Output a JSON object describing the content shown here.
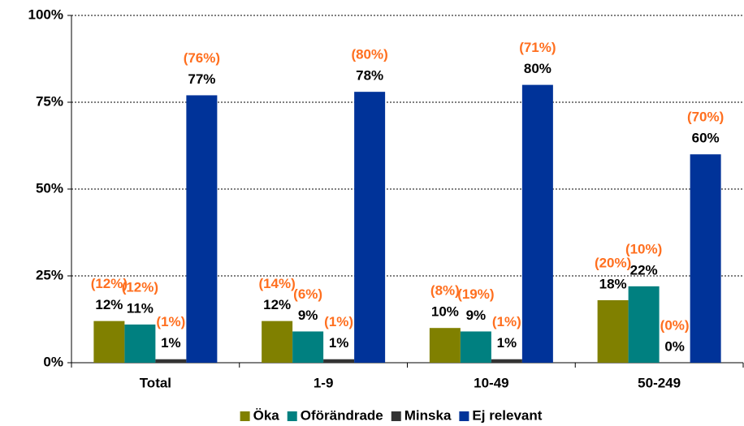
{
  "chart_data": {
    "type": "bar",
    "categories": [
      "Total",
      "1-9",
      "10-49",
      "50-249"
    ],
    "series": [
      {
        "name": "Öka",
        "color": "#808000",
        "values": [
          12,
          12,
          10,
          18
        ],
        "value_labels": [
          "12%",
          "12%",
          "10%",
          "18%"
        ],
        "prior_labels": [
          "(12%)",
          "(14%)",
          "(8%)",
          "(20%)"
        ]
      },
      {
        "name": "Oförändrade",
        "color": "#008080",
        "values": [
          11,
          9,
          9,
          22
        ],
        "value_labels": [
          "11%",
          "9%",
          "9%",
          "22%"
        ],
        "prior_labels": [
          "(12%)",
          "(6%)",
          "(19%)",
          "(10%)"
        ]
      },
      {
        "name": "Minska",
        "color": "#333333",
        "values": [
          1,
          1,
          1,
          0
        ],
        "value_labels": [
          "1%",
          "1%",
          "1%",
          "0%"
        ],
        "prior_labels": [
          "(1%)",
          "(1%)",
          "(1%)",
          "(0%)"
        ]
      },
      {
        "name": "Ej relevant",
        "color": "#003399",
        "values": [
          77,
          78,
          80,
          60
        ],
        "value_labels": [
          "77%",
          "78%",
          "80%",
          "60%"
        ],
        "prior_labels": [
          "(76%)",
          "(80%)",
          "(71%)",
          "(70%)"
        ]
      }
    ],
    "prior_color": "#ff6f1f",
    "ylim": [
      0,
      100
    ],
    "yticks": [
      {
        "value": 0,
        "label": "0%"
      },
      {
        "value": 25,
        "label": "25%"
      },
      {
        "value": 50,
        "label": "50%"
      },
      {
        "value": 75,
        "label": "75%"
      },
      {
        "value": 100,
        "label": "100%"
      }
    ],
    "grid": true,
    "legend": "bottom"
  }
}
